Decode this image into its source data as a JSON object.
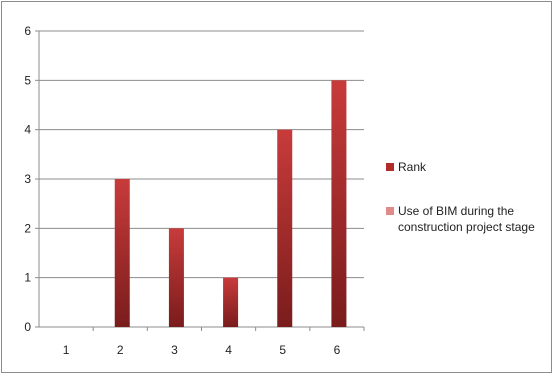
{
  "chart_data": {
    "type": "bar",
    "categories": [
      "1",
      "2",
      "3",
      "4",
      "5",
      "6"
    ],
    "series": [
      {
        "name": "Rank",
        "values": [
          0,
          3,
          2,
          1,
          4,
          5
        ],
        "color": "#b22a2a"
      },
      {
        "name": "Use of BIM during the construction project stage",
        "values": [
          0,
          0,
          0,
          0,
          0,
          0
        ],
        "color": "#e08a8a"
      }
    ],
    "ylim": [
      0,
      6
    ],
    "yticks": [
      0,
      1,
      2,
      3,
      4,
      5,
      6
    ],
    "grid": true,
    "legend_position": "right",
    "legend": [
      {
        "lines": [
          "Rank"
        ],
        "color": "#b22a2a"
      },
      {
        "lines": [
          "Use of BIM during the",
          "construction project stage"
        ],
        "color": "#e08a8a"
      }
    ]
  }
}
